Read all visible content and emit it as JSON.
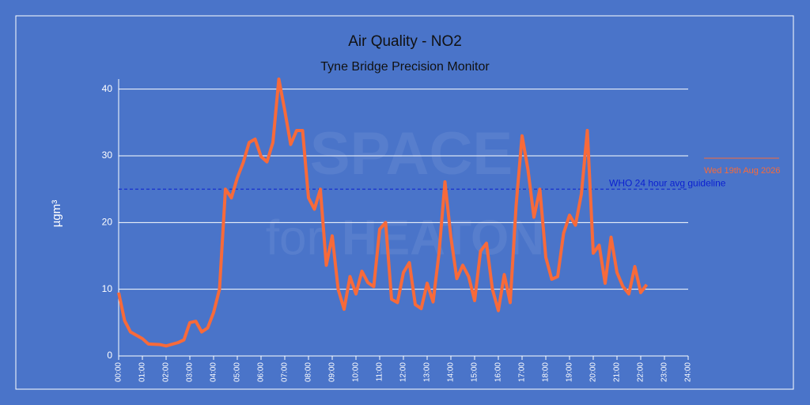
{
  "chart_data": {
    "type": "line",
    "title": "Air Quality - NO2",
    "subtitle": "Tyne Bridge Precision Monitor",
    "y_label": "µgm³",
    "watermark": [
      "SPACE",
      "for",
      "HEATON"
    ],
    "x": [
      0,
      0.25,
      0.5,
      1,
      1.25,
      1.75,
      2,
      2.5,
      2.75,
      3,
      3.25,
      3.5,
      3.75,
      4,
      4.25,
      4.5,
      4.75,
      5,
      5.25,
      5.5,
      5.75,
      6,
      6.25,
      6.5,
      6.75,
      7,
      7.25,
      7.5,
      7.75,
      8,
      8.25,
      8.5,
      8.75,
      9,
      9.25,
      9.5,
      9.75,
      10,
      10.25,
      10.5,
      10.75,
      11,
      11.25,
      11.5,
      11.75,
      12,
      12.25,
      12.5,
      12.75,
      13,
      13.25,
      13.5,
      13.75,
      14,
      14.25,
      14.5,
      14.75,
      15,
      15.25,
      15.5,
      15.75,
      16,
      16.25,
      16.5,
      16.75,
      17,
      17.25,
      17.5,
      17.75,
      18,
      18.25,
      18.5,
      18.75,
      19,
      19.25,
      19.5,
      19.75,
      20,
      20.25,
      20.5,
      20.75,
      21,
      21.25,
      21.5,
      21.75,
      22,
      22.25
    ],
    "series": [
      {
        "name": "Wed 19th Aug 2026",
        "color": "#f76a3a",
        "values": [
          9.5,
          5.3,
          3.6,
          2.6,
          1.8,
          1.7,
          1.5,
          2.0,
          2.4,
          5.0,
          5.2,
          3.6,
          4.2,
          6.5,
          10,
          25,
          23.7,
          26.7,
          29,
          32,
          32.5,
          29.9,
          29.1,
          32,
          41.5,
          36.8,
          31.7,
          33.8,
          33.8,
          23.7,
          22,
          25,
          13.6,
          18,
          10,
          7,
          11.9,
          9.3,
          12.7,
          11,
          10.4,
          19,
          20,
          8.5,
          8,
          12.5,
          14,
          7.7,
          7.1,
          10.9,
          8.1,
          15.4,
          26.1,
          17.8,
          11.6,
          13.6,
          11.9,
          8.3,
          15.7,
          16.9,
          10,
          6.8,
          12.2,
          8,
          22.6,
          33,
          27.9,
          20.8,
          25,
          14.8,
          11.5,
          11.9,
          18.4,
          21.1,
          19.6,
          24.3,
          33.8,
          15.4,
          16.6,
          10.9,
          17.8,
          12.5,
          10.4,
          9.3,
          13.4,
          9.5,
          10.7
        ]
      }
    ],
    "reference_lines": [
      {
        "value": 25,
        "label": "WHO 24 hour avg guideline",
        "color": "#0a1fd0"
      }
    ],
    "xlim": [
      0,
      24
    ],
    "xticks": [
      {
        "value": 0,
        "label": "00:00"
      },
      {
        "value": 1,
        "label": "01:00"
      },
      {
        "value": 2,
        "label": "02:00"
      },
      {
        "value": 3,
        "label": "03:00"
      },
      {
        "value": 4,
        "label": "04:00"
      },
      {
        "value": 5,
        "label": "05:00"
      },
      {
        "value": 6,
        "label": "06:00"
      },
      {
        "value": 7,
        "label": "07:00"
      },
      {
        "value": 8,
        "label": "08:00"
      },
      {
        "value": 9,
        "label": "09:00"
      },
      {
        "value": 10,
        "label": "10:00"
      },
      {
        "value": 11,
        "label": "11:00"
      },
      {
        "value": 12,
        "label": "12:00"
      },
      {
        "value": 13,
        "label": "13:00"
      },
      {
        "value": 14,
        "label": "14:00"
      },
      {
        "value": 15,
        "label": "15:00"
      },
      {
        "value": 16,
        "label": "16:00"
      },
      {
        "value": 17,
        "label": "17:00"
      },
      {
        "value": 18,
        "label": "18:00"
      },
      {
        "value": 19,
        "label": "19:00"
      },
      {
        "value": 20,
        "label": "20:00"
      },
      {
        "value": 21,
        "label": "21:00"
      },
      {
        "value": 22,
        "label": "22:00"
      },
      {
        "value": 23,
        "label": "23:00"
      },
      {
        "value": 24,
        "label": "24:00"
      }
    ],
    "ylim": [
      0,
      41.5
    ],
    "yticks": [
      0,
      10,
      20,
      30,
      40
    ],
    "grid": true,
    "legend": "right"
  }
}
